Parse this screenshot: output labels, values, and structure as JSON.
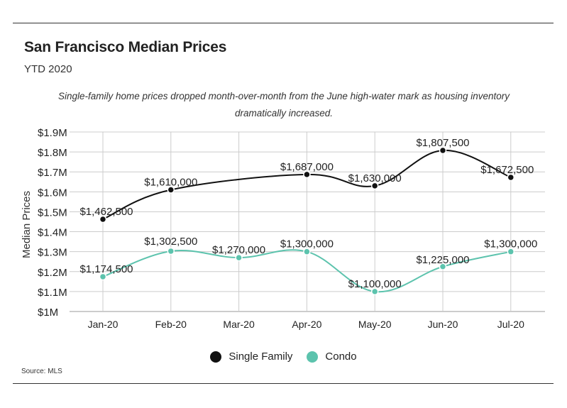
{
  "header": {
    "title": "San Francisco Median Prices",
    "subtitle": "YTD 2020",
    "note": "Single-family home prices dropped month-over-month from the June high-water mark as housing inventory dramatically increased."
  },
  "source": "Source:  MLS",
  "colors": {
    "single_family": "#111111",
    "condo": "#5cc3ad",
    "grid": "#cccccc",
    "axis": "#999999"
  },
  "chart_data": {
    "type": "line",
    "title": "San Francisco Median Prices",
    "subtitle": "YTD 2020",
    "xlabel": "",
    "ylabel": "Median Prices",
    "categories": [
      "Jan-20",
      "Feb-20",
      "Mar-20",
      "Apr-20",
      "May-20",
      "Jun-20",
      "Jul-20"
    ],
    "ylim": [
      1000000,
      1900000
    ],
    "yticks": [
      {
        "value": 1000000,
        "label": "$1M"
      },
      {
        "value": 1100000,
        "label": "$1.1M"
      },
      {
        "value": 1200000,
        "label": "$1.2M"
      },
      {
        "value": 1300000,
        "label": "$1.3M"
      },
      {
        "value": 1400000,
        "label": "$1.4M"
      },
      {
        "value": 1500000,
        "label": "$1.5M"
      },
      {
        "value": 1600000,
        "label": "$1.6M"
      },
      {
        "value": 1700000,
        "label": "$1.7M"
      },
      {
        "value": 1800000,
        "label": "$1.8M"
      },
      {
        "value": 1900000,
        "label": "$1.9M"
      }
    ],
    "grid": true,
    "legend": "bottom-center",
    "series": [
      {
        "name": "Single Family",
        "color": "#111111",
        "values": [
          1462500,
          1610000,
          null,
          1687000,
          1630000,
          1807500,
          1672500
        ],
        "labels": [
          "$1,462,500",
          "$1,610,000",
          "",
          "$1,687,000",
          "$1,630,000",
          "$1,807,500",
          "$1,672,500"
        ]
      },
      {
        "name": "Condo",
        "color": "#5cc3ad",
        "values": [
          1174500,
          1302500,
          1270000,
          1300000,
          1100000,
          1225000,
          1300000
        ],
        "labels": [
          "$1,174,500",
          "$1,302,500",
          "$1,270,000",
          "$1,300,000",
          "$1,100,000",
          "$1,225,000",
          "$1,300,000"
        ]
      }
    ]
  },
  "legend": {
    "items": [
      "Single Family",
      "Condo"
    ]
  }
}
